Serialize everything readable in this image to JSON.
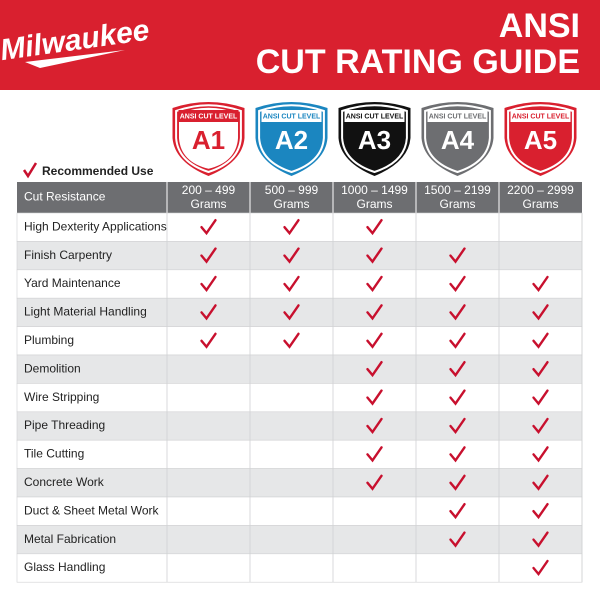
{
  "header": {
    "brand": "Milwaukee",
    "title_line1": "ANSI",
    "title_line2": "CUT RATING GUIDE"
  },
  "badges": [
    {
      "caption": "ANSI CUT LEVEL",
      "level": "A1",
      "color": "#ffffff",
      "accent": "#d9202f"
    },
    {
      "caption": "ANSI CUT LEVEL",
      "level": "A2",
      "color": "#1b86c0",
      "accent": "#ffffff"
    },
    {
      "caption": "ANSI CUT LEVEL",
      "level": "A3",
      "color": "#111111",
      "accent": "#ffffff"
    },
    {
      "caption": "ANSI CUT LEVEL",
      "level": "A4",
      "color": "#6d6e71",
      "accent": "#ffffff"
    },
    {
      "caption": "ANSI CUT LEVEL",
      "level": "A5",
      "color": "#d9202f",
      "accent": "#ffffff"
    }
  ],
  "legend": "Recommended Use",
  "table": {
    "header": "Cut Resistance",
    "columns": [
      {
        "range": "200 – 499",
        "unit": "Grams"
      },
      {
        "range": "500 – 999",
        "unit": "Grams"
      },
      {
        "range": "1000 – 1499",
        "unit": "Grams"
      },
      {
        "range": "1500 – 2199",
        "unit": "Grams"
      },
      {
        "range": "2200 – 2999",
        "unit": "Grams"
      }
    ],
    "rows": [
      {
        "name": "High Dexterity Applications",
        "checks": [
          true,
          true,
          true,
          false,
          false
        ]
      },
      {
        "name": "Finish Carpentry",
        "checks": [
          true,
          true,
          true,
          true,
          false
        ]
      },
      {
        "name": "Yard Maintenance",
        "checks": [
          true,
          true,
          true,
          true,
          true
        ]
      },
      {
        "name": "Light Material Handling",
        "checks": [
          true,
          true,
          true,
          true,
          true
        ]
      },
      {
        "name": "Plumbing",
        "checks": [
          true,
          true,
          true,
          true,
          true
        ]
      },
      {
        "name": "Demolition",
        "checks": [
          false,
          false,
          true,
          true,
          true
        ]
      },
      {
        "name": "Wire Stripping",
        "checks": [
          false,
          false,
          true,
          true,
          true
        ]
      },
      {
        "name": "Pipe Threading",
        "checks": [
          false,
          false,
          true,
          true,
          true
        ]
      },
      {
        "name": "Tile Cutting",
        "checks": [
          false,
          false,
          true,
          true,
          true
        ]
      },
      {
        "name": "Concrete Work",
        "checks": [
          false,
          false,
          true,
          true,
          true
        ]
      },
      {
        "name": "Duct & Sheet Metal Work",
        "checks": [
          false,
          false,
          false,
          true,
          true
        ]
      },
      {
        "name": "Metal Fabrication",
        "checks": [
          false,
          false,
          false,
          true,
          true
        ]
      },
      {
        "name": "Glass Handling",
        "checks": [
          false,
          false,
          false,
          false,
          true
        ]
      }
    ]
  }
}
